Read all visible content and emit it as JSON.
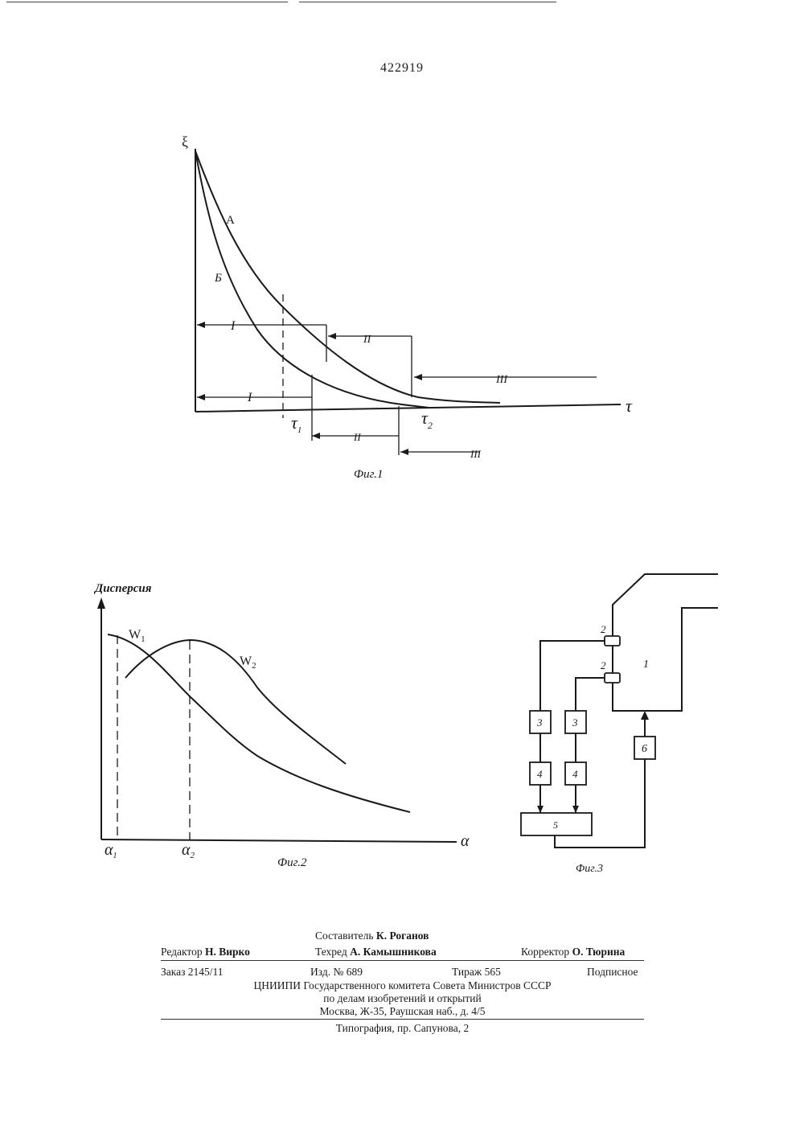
{
  "page": {
    "number": "422919"
  },
  "fig1": {
    "caption": "Фиг.1",
    "y_label": "ξ",
    "x_label": "τ",
    "curve_a": "А",
    "curve_b": "Б",
    "upper_ranges": [
      "I",
      "II",
      "III"
    ],
    "lower_ranges": [
      "I",
      "II",
      "III"
    ],
    "tau1": "τ",
    "tau1_sub": "1",
    "tau2": "τ",
    "tau2_sub": "2"
  },
  "fig2": {
    "caption": "Фиг.2",
    "y_label": "Дисперсия",
    "x_label": "α",
    "w1": "W",
    "w1_sub": "1",
    "w2": "W",
    "w2_sub": "2",
    "alpha1": "α",
    "alpha1_sub": "1",
    "alpha2": "α",
    "alpha2_sub": "2"
  },
  "fig3": {
    "caption": "Фиг.3",
    "labels": {
      "sensor_top": "2",
      "sensor_bottom": "2",
      "object": "1",
      "box3a": "3",
      "box3b": "3",
      "box4a": "4",
      "box4b": "4",
      "box5": "5",
      "box6": "6"
    }
  },
  "imprint": {
    "compiler_label": "Составитель",
    "compiler_name": "К. Роганов",
    "editor_label": "Редактор",
    "editor_name": "Н. Вирко",
    "techred_label": "Техред",
    "techred_name": "А. Камышникова",
    "corrector_label": "Корректор",
    "corrector_name": "О. Тюрина",
    "order": "Заказ 2145/11",
    "edition": "Изд. № 689",
    "print_run": "Тираж 565",
    "subscription": "Подписное",
    "org_line1": "ЦНИИПИ Государственного комитета Совета Министров СССР",
    "org_line2": "по делам изобретений и открытий",
    "org_line3": "Москва, Ж-35, Раушская наб., д. 4/5",
    "printer": "Типография, пр. Сапунова, 2"
  }
}
